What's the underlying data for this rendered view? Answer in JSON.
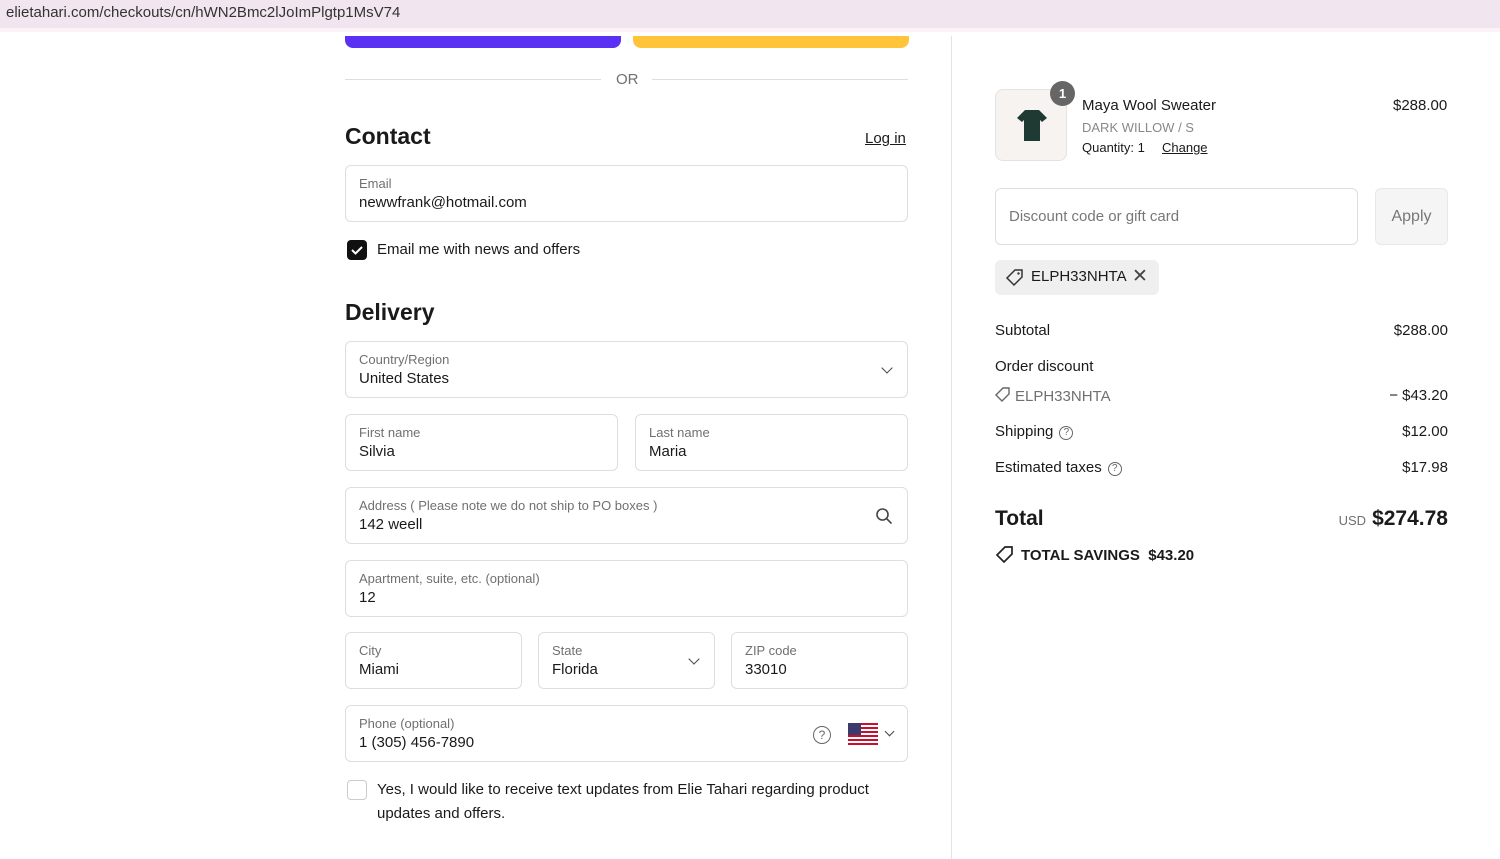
{
  "browser": {
    "url": "elietahari.com/checkouts/cn/hWN2Bmc2lJoImPlgtp1MsV74"
  },
  "express": {
    "or_label": "OR",
    "colors": {
      "shop_pay": "#5a31f4",
      "paypal": "#ffc439"
    }
  },
  "contact": {
    "title": "Contact",
    "login_label": "Log in",
    "email_label": "Email",
    "email_value": "newwfrank@hotmail.com",
    "news_label": "Email me with news and offers",
    "news_checked": true
  },
  "delivery": {
    "title": "Delivery",
    "country_label": "Country/Region",
    "country_value": "United States",
    "first_label": "First name",
    "first_value": "Silvia",
    "last_label": "Last name",
    "last_value": "Maria",
    "address_label": "Address ( Please note we do not ship to PO boxes )",
    "address_value": "142 weell",
    "apt_label": "Apartment, suite, etc. (optional)",
    "apt_value": "12",
    "city_label": "City",
    "city_value": "Miami",
    "state_label": "State",
    "state_value": "Florida",
    "zip_label": "ZIP code",
    "zip_value": "33010",
    "phone_label": "Phone (optional)",
    "phone_value": "1 (305) 456-7890",
    "sms_label": "Yes, I would like to receive text updates from Elie Tahari regarding product updates and offers.",
    "sms_checked": false
  },
  "summary": {
    "item": {
      "name": "Maya Wool Sweater",
      "variant": "DARK WILLOW / S",
      "quantity": "Quantity: 1",
      "change": "Change",
      "price": "$288.00",
      "badge": "1"
    },
    "discount_placeholder": "Discount code or gift card",
    "apply_label": "Apply",
    "applied_code": "ELPH33NHTA",
    "subtotal_label": "Subtotal",
    "subtotal": "$288.00",
    "order_discount_label": "Order discount",
    "discount_code": "ELPH33NHTA",
    "discount_amount": "− $43.20",
    "shipping_label": "Shipping",
    "shipping": "$12.00",
    "taxes_label": "Estimated taxes",
    "taxes": "$17.98",
    "total_label": "Total",
    "currency": "USD",
    "total": "$274.78",
    "savings_label": "TOTAL SAVINGS",
    "savings": "$43.20"
  }
}
